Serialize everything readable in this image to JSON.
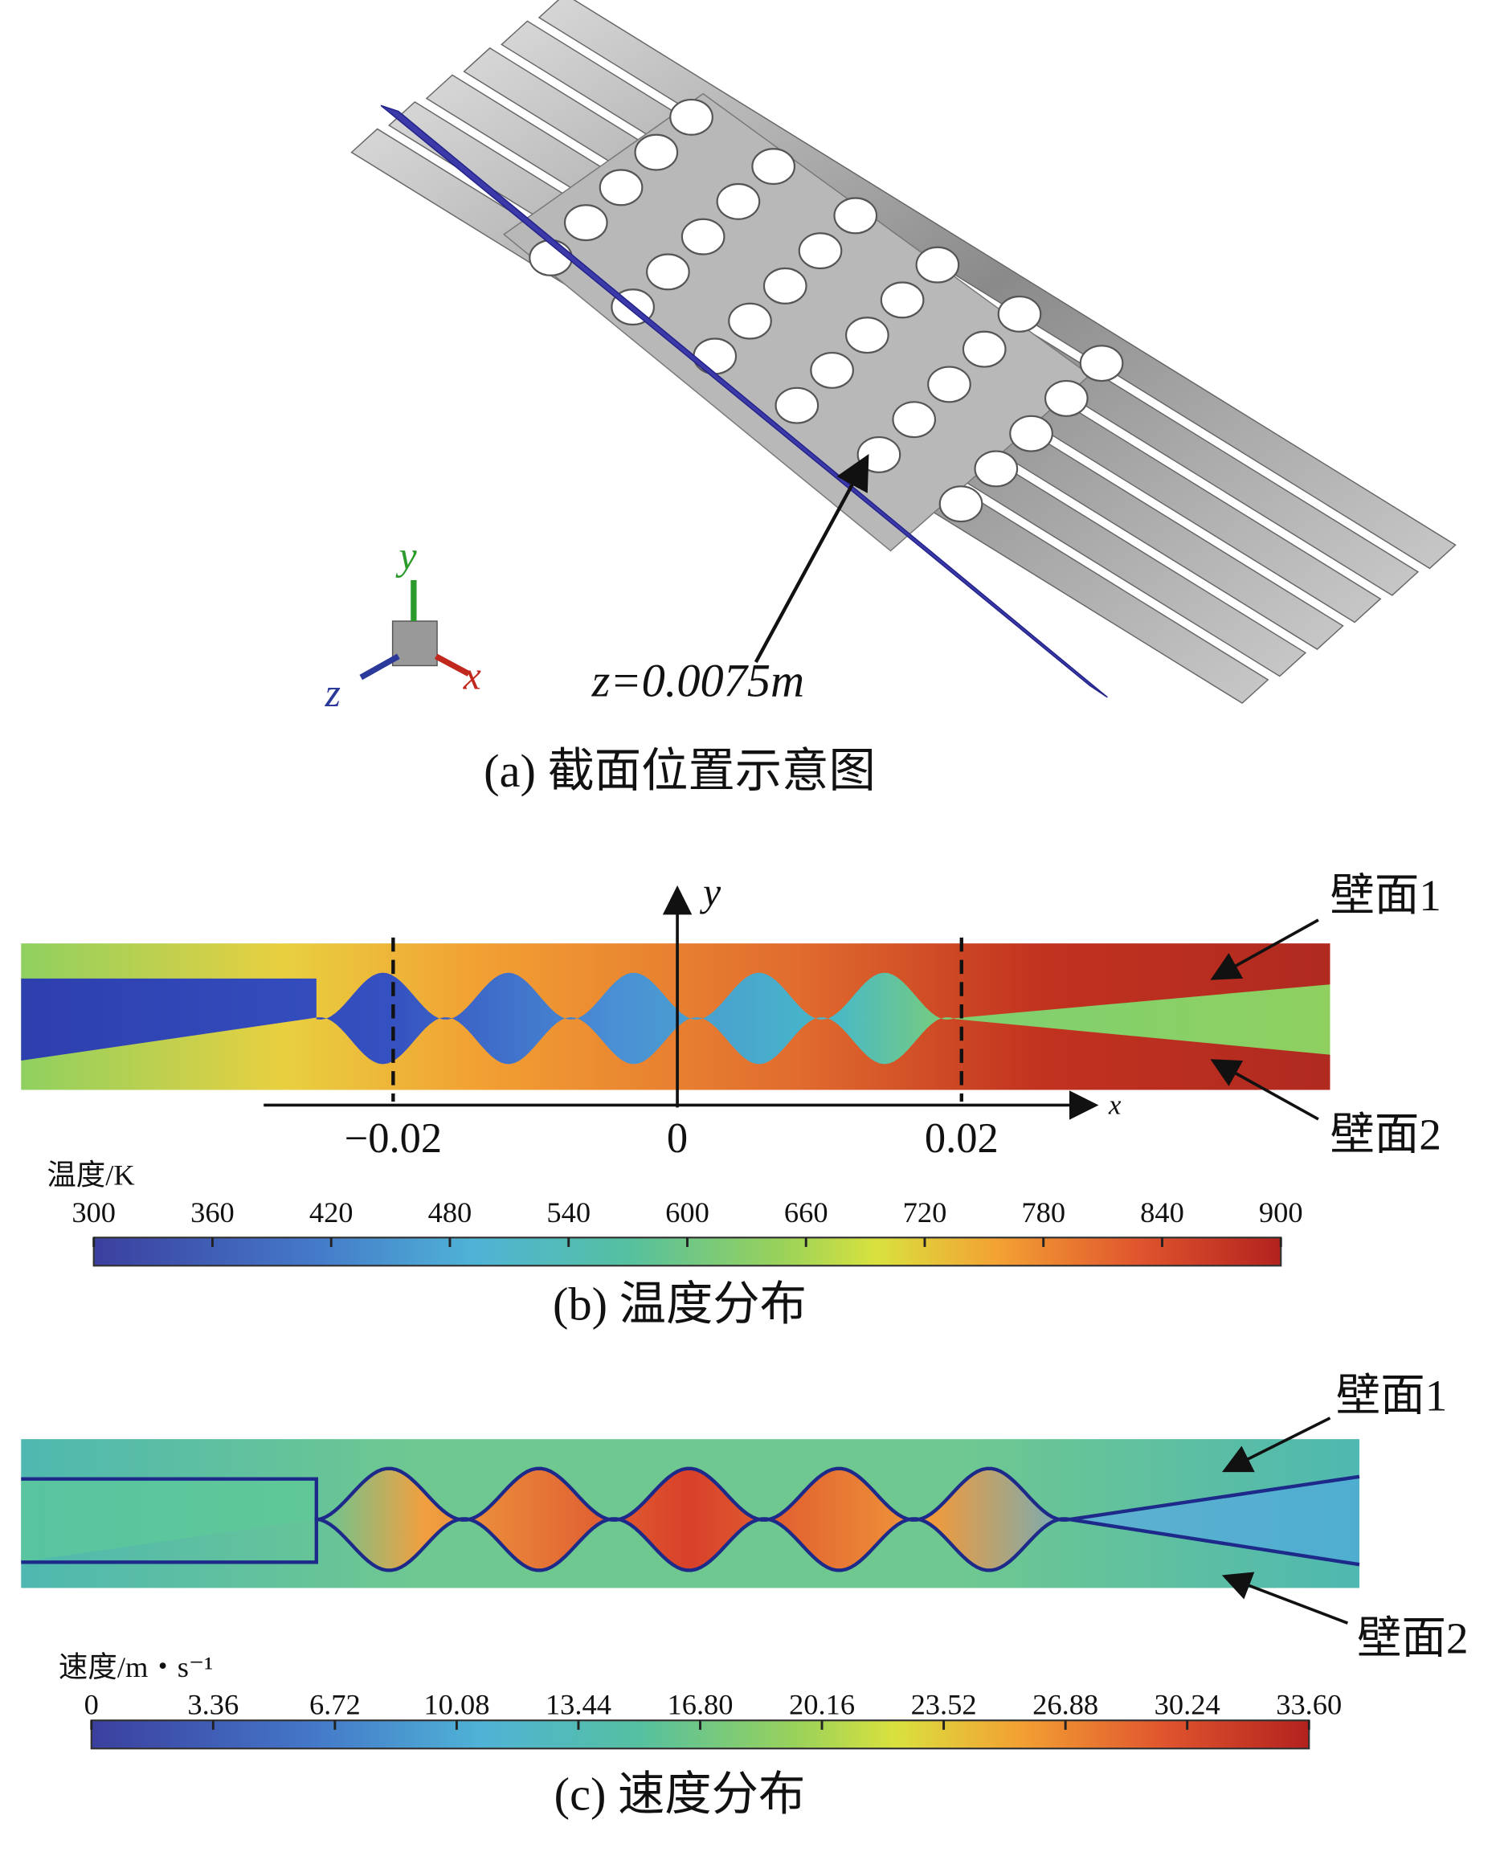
{
  "panel_a": {
    "section_label": "z=0.0075m",
    "axes": {
      "x": "x",
      "y": "y",
      "z": "z"
    },
    "caption": "(a) 截面位置示意图"
  },
  "panel_b": {
    "x_axis": {
      "label": "x",
      "ticks": [
        {
          "value": -0.02,
          "label": "−0.02"
        },
        0,
        0.02
      ]
    },
    "y_axis_label": "y",
    "wall_labels": [
      "壁面1",
      "壁面2"
    ],
    "colorbar": {
      "title": "温度/K",
      "ticks": [
        300,
        360,
        420,
        480,
        540,
        600,
        660,
        720,
        780,
        840,
        900
      ]
    },
    "caption": "(b) 温度分布"
  },
  "panel_c": {
    "wall_labels": [
      "壁面1",
      "壁面2"
    ],
    "colorbar": {
      "title": "速度/m・s⁻¹",
      "ticks": [
        0,
        3.36,
        6.72,
        10.08,
        13.44,
        {
          "value": 16.8,
          "label": "16.80"
        },
        20.16,
        23.52,
        26.88,
        30.24,
        {
          "value": 33.6,
          "label": "33.60"
        }
      ]
    },
    "caption": "(c) 速度分布"
  }
}
